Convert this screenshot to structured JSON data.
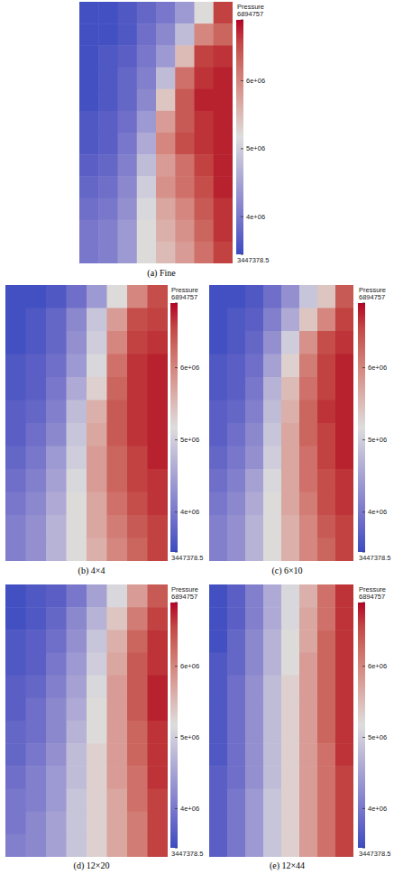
{
  "chart_data": [
    {
      "type": "heatmap",
      "title": "(a) Fine",
      "colorbar_title": "Pressure",
      "tick_labels": false,
      "colorbar_range": [
        3447378.5,
        6894757
      ],
      "colorbar_ticks": [
        3447378.5,
        {
          "value": 4000000,
          "label": "4e+06"
        },
        {
          "value": 5000000,
          "label": "5e+06"
        },
        {
          "value": 6000000,
          "label": "6e+06"
        },
        6894757
      ],
      "values": [
        [
          3500000.0,
          3500000.0,
          3600000.0,
          3800000.0,
          4000000.0,
          4400000.0,
          5200000.0,
          6600000.0
        ],
        [
          3500000.0,
          3500000.0,
          3600000.0,
          3900000.0,
          4200000.0,
          4800000.0,
          6000000.0,
          6300000.0
        ],
        [
          3500000.0,
          3600000.0,
          3700000.0,
          4000000.0,
          4400000.0,
          5500000.0,
          6600000.0,
          6700000.0
        ],
        [
          3500000.0,
          3600000.0,
          3800000.0,
          4100000.0,
          4800000.0,
          6200000.0,
          6700000.0,
          6800000.0
        ],
        [
          3500000.0,
          3600000.0,
          3800000.0,
          4200000.0,
          5400000.0,
          6400000.0,
          6800000.0,
          6800000.0
        ],
        [
          3600000.0,
          3700000.0,
          3900000.0,
          4400000.0,
          5800000.0,
          6400000.0,
          6700000.0,
          6800000.0
        ],
        [
          3600000.0,
          3700000.0,
          4000000.0,
          4600000.0,
          6000000.0,
          6500000.0,
          6700000.0,
          6800000.0
        ],
        [
          3700000.0,
          3800000.0,
          4100000.0,
          4800000.0,
          5800000.0,
          6200000.0,
          6600000.0,
          6800000.0
        ],
        [
          3800000.0,
          3900000.0,
          4200000.0,
          5000000.0,
          5900000.0,
          6200000.0,
          6500000.0,
          6800000.0
        ],
        [
          3900000.0,
          4000000.0,
          4300000.0,
          5100000.0,
          5700000.0,
          6000000.0,
          6400000.0,
          6700000.0
        ],
        [
          4000000.0,
          4100000.0,
          4400000.0,
          5200000.0,
          5600000.0,
          5900000.0,
          6300000.0,
          6700000.0
        ],
        [
          4000000.0,
          4100000.0,
          4400000.0,
          5200000.0,
          5500000.0,
          5800000.0,
          6200000.0,
          6600000.0
        ]
      ]
    },
    {
      "type": "heatmap",
      "title": "(b) 4×4",
      "colorbar_title": "Pressure",
      "tick_labels": false,
      "colorbar_range": [
        3447378.5,
        6894757
      ],
      "colorbar_ticks": [
        3447378.5,
        {
          "value": 4000000,
          "label": "4e+06"
        },
        {
          "value": 5000000,
          "label": "5e+06"
        },
        {
          "value": 6000000,
          "label": "6e+06"
        },
        6894757
      ],
      "values": [
        [
          3500000.0,
          3500000.0,
          3600000.0,
          3900000.0,
          4400000.0,
          5200000.0,
          6000000.0,
          6500000.0
        ],
        [
          3500000.0,
          3600000.0,
          3800000.0,
          4200000.0,
          4900000.0,
          5800000.0,
          6500000.0,
          6600000.0
        ],
        [
          3500000.0,
          3600000.0,
          3800000.0,
          4300000.0,
          5000000.0,
          6000000.0,
          6600000.0,
          6700000.0
        ],
        [
          3600000.0,
          3700000.0,
          3900000.0,
          4400000.0,
          5100000.0,
          6200000.0,
          6700000.0,
          6800000.0
        ],
        [
          3600000.0,
          3700000.0,
          4000000.0,
          4600000.0,
          5300000.0,
          6300000.0,
          6700000.0,
          6800000.0
        ],
        [
          3700000.0,
          3800000.0,
          4100000.0,
          4800000.0,
          5600000.0,
          6400000.0,
          6700000.0,
          6800000.0
        ],
        [
          3700000.0,
          3900000.0,
          4200000.0,
          4900000.0,
          5700000.0,
          6400000.0,
          6700000.0,
          6800000.0
        ],
        [
          3800000.0,
          4000000.0,
          4400000.0,
          5000000.0,
          5800000.0,
          6300000.0,
          6600000.0,
          6800000.0
        ],
        [
          3900000.0,
          4100000.0,
          4500000.0,
          5100000.0,
          5800000.0,
          6300000.0,
          6600000.0,
          6700000.0
        ],
        [
          4000000.0,
          4200000.0,
          4600000.0,
          5200000.0,
          5700000.0,
          6200000.0,
          6500000.0,
          6700000.0
        ],
        [
          4100000.0,
          4300000.0,
          4700000.0,
          5200000.0,
          5700000.0,
          6100000.0,
          6400000.0,
          6600000.0
        ],
        [
          4100000.0,
          4300000.0,
          4700000.0,
          5200000.0,
          5600000.0,
          6000000.0,
          6300000.0,
          6600000.0
        ]
      ]
    },
    {
      "type": "heatmap",
      "title": "(c) 6×10",
      "colorbar_title": "Pressure",
      "tick_labels": false,
      "colorbar_range": [
        3447378.5,
        6894757
      ],
      "colorbar_ticks": [
        3447378.5,
        {
          "value": 4000000,
          "label": "4e+06"
        },
        {
          "value": 5000000,
          "label": "5e+06"
        },
        {
          "value": 6000000,
          "label": "6e+06"
        },
        6894757
      ],
      "values": [
        [
          3500000.0,
          3500000.0,
          3600000.0,
          3900000.0,
          4300000.0,
          4900000.0,
          5400000.0,
          6400000.0
        ],
        [
          3500000.0,
          3600000.0,
          3700000.0,
          4100000.0,
          4600000.0,
          5400000.0,
          6000000.0,
          6600000.0
        ],
        [
          3500000.0,
          3600000.0,
          3800000.0,
          4300000.0,
          5000000.0,
          5900000.0,
          6500000.0,
          6700000.0
        ],
        [
          3600000.0,
          3700000.0,
          3900000.0,
          4500000.0,
          5300000.0,
          6100000.0,
          6600000.0,
          6800000.0
        ],
        [
          3600000.0,
          3700000.0,
          4000000.0,
          4700000.0,
          5500000.0,
          6200000.0,
          6600000.0,
          6800000.0
        ],
        [
          3700000.0,
          3800000.0,
          4100000.0,
          4800000.0,
          5600000.0,
          6300000.0,
          6700000.0,
          6800000.0
        ],
        [
          3700000.0,
          3900000.0,
          4200000.0,
          4900000.0,
          5700000.0,
          6300000.0,
          6600000.0,
          6800000.0
        ],
        [
          3800000.0,
          4000000.0,
          4300000.0,
          5000000.0,
          5700000.0,
          6200000.0,
          6600000.0,
          6800000.0
        ],
        [
          3900000.0,
          4100000.0,
          4500000.0,
          5100000.0,
          5700000.0,
          6200000.0,
          6500000.0,
          6700000.0
        ],
        [
          4000000.0,
          4200000.0,
          4600000.0,
          5200000.0,
          5700000.0,
          6100000.0,
          6500000.0,
          6700000.0
        ],
        [
          4100000.0,
          4300000.0,
          4700000.0,
          5200000.0,
          5600000.0,
          6000000.0,
          6400000.0,
          6600000.0
        ],
        [
          4100000.0,
          4300000.0,
          4700000.0,
          5200000.0,
          5600000.0,
          6000000.0,
          6300000.0,
          6600000.0
        ]
      ]
    },
    {
      "type": "heatmap",
      "title": "(d) 12×20",
      "colorbar_title": "Pressure",
      "tick_labels": false,
      "colorbar_range": [
        3447378.5,
        6894757
      ],
      "colorbar_ticks": [
        3447378.5,
        {
          "value": 4000000,
          "label": "4e+06"
        },
        {
          "value": 5000000,
          "label": "5e+06"
        },
        {
          "value": 6000000,
          "label": "6e+06"
        },
        6894757
      ],
      "values": [
        [
          3500000.0,
          3600000.0,
          3700000.0,
          4000000.0,
          4500000.0,
          5100000.0,
          5800000.0,
          6400000.0
        ],
        [
          3500000.0,
          3600000.0,
          3800000.0,
          4200000.0,
          4700000.0,
          5400000.0,
          6100000.0,
          6600000.0
        ],
        [
          3600000.0,
          3700000.0,
          3900000.0,
          4300000.0,
          4900000.0,
          5600000.0,
          6300000.0,
          6700000.0
        ],
        [
          3600000.0,
          3700000.0,
          4000000.0,
          4400000.0,
          5000000.0,
          5700000.0,
          6400000.0,
          6700000.0
        ],
        [
          3700000.0,
          3800000.0,
          4100000.0,
          4500000.0,
          5100000.0,
          5800000.0,
          6400000.0,
          6800000.0
        ],
        [
          3700000.0,
          3900000.0,
          4200000.0,
          4600000.0,
          5200000.0,
          5800000.0,
          6400000.0,
          6800000.0
        ],
        [
          3800000.0,
          3900000.0,
          4200000.0,
          4700000.0,
          5200000.0,
          5800000.0,
          6300000.0,
          6700000.0
        ],
        [
          3800000.0,
          4000000.0,
          4300000.0,
          4800000.0,
          5300000.0,
          5800000.0,
          6300000.0,
          6700000.0
        ],
        [
          3900000.0,
          4100000.0,
          4400000.0,
          4800000.0,
          5300000.0,
          5800000.0,
          6200000.0,
          6700000.0
        ],
        [
          4000000.0,
          4100000.0,
          4400000.0,
          4900000.0,
          5300000.0,
          5700000.0,
          6200000.0,
          6600000.0
        ],
        [
          4000000.0,
          4200000.0,
          4500000.0,
          4900000.0,
          5300000.0,
          5700000.0,
          6100000.0,
          6600000.0
        ],
        [
          4100000.0,
          4200000.0,
          4500000.0,
          4900000.0,
          5300000.0,
          5700000.0,
          6100000.0,
          6600000.0
        ]
      ]
    },
    {
      "type": "heatmap",
      "title": "(e) 12×44",
      "colorbar_title": "Pressure",
      "tick_labels": false,
      "colorbar_range": [
        3447378.5,
        6894757
      ],
      "colorbar_ticks": [
        3447378.5,
        {
          "value": 4000000,
          "label": "4e+06"
        },
        {
          "value": 5000000,
          "label": "5e+06"
        },
        {
          "value": 6000000,
          "label": "6e+06"
        },
        6894757
      ],
      "values": [
        [
          3500000.0,
          3700000.0,
          4100000.0,
          4600000.0,
          5100000.0,
          5600000.0,
          6200000.0,
          6700000.0
        ],
        [
          3500000.0,
          3700000.0,
          4100000.0,
          4600000.0,
          5100000.0,
          5700000.0,
          6200000.0,
          6700000.0
        ],
        [
          3500000.0,
          3800000.0,
          4200000.0,
          4700000.0,
          5200000.0,
          5700000.0,
          6300000.0,
          6700000.0
        ],
        [
          3600000.0,
          3800000.0,
          4200000.0,
          4700000.0,
          5200000.0,
          5800000.0,
          6300000.0,
          6700000.0
        ],
        [
          3600000.0,
          3900000.0,
          4300000.0,
          4800000.0,
          5300000.0,
          5800000.0,
          6300000.0,
          6700000.0
        ],
        [
          3600000.0,
          3900000.0,
          4300000.0,
          4800000.0,
          5300000.0,
          5800000.0,
          6300000.0,
          6700000.0
        ],
        [
          3600000.0,
          3900000.0,
          4300000.0,
          4800000.0,
          5300000.0,
          5800000.0,
          6300000.0,
          6700000.0
        ],
        [
          3600000.0,
          3900000.0,
          4300000.0,
          4800000.0,
          5300000.0,
          5800000.0,
          6200000.0,
          6700000.0
        ],
        [
          3700000.0,
          3900000.0,
          4300000.0,
          4800000.0,
          5300000.0,
          5800000.0,
          6200000.0,
          6600000.0
        ],
        [
          3700000.0,
          4000000.0,
          4400000.0,
          4900000.0,
          5300000.0,
          5800000.0,
          6200000.0,
          6600000.0
        ],
        [
          3700000.0,
          4000000.0,
          4400000.0,
          4900000.0,
          5300000.0,
          5800000.0,
          6200000.0,
          6600000.0
        ],
        [
          3700000.0,
          4000000.0,
          4400000.0,
          4900000.0,
          5300000.0,
          5800000.0,
          6200000.0,
          6600000.0
        ]
      ]
    }
  ]
}
